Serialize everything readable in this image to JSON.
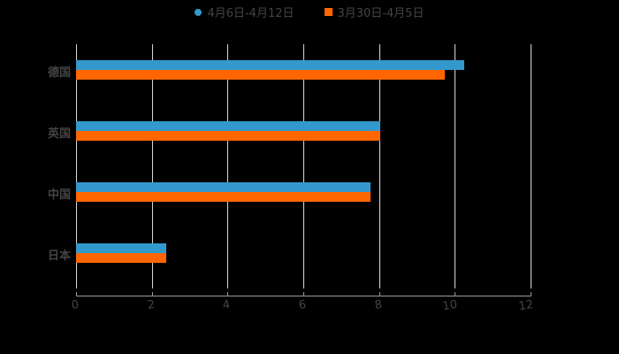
{
  "chart_data": {
    "type": "bar",
    "orientation": "horizontal",
    "title": "",
    "xlabel": "",
    "ylabel": "",
    "categories": [
      "德国",
      "英国",
      "中国",
      "日本"
    ],
    "series": [
      {
        "name": "4月6日-4月12日",
        "color": "#3399cc",
        "values": [
          10.25,
          8.03,
          7.78,
          2.38
        ]
      },
      {
        "name": "3月30日-4月5日",
        "color": "#ff6600",
        "values": [
          9.74,
          8.03,
          7.78,
          2.38
        ]
      }
    ],
    "xlim": [
      0,
      12
    ],
    "xticks": [
      "0",
      "2",
      "4",
      "6",
      "8",
      "10",
      "12"
    ],
    "grid": true,
    "legend_position": "top"
  },
  "legend": [
    {
      "label": "4月6日-4月12日",
      "color": "#3399cc",
      "marker": "circle"
    },
    {
      "label": "3月30日-4月5日",
      "color": "#ff6600",
      "marker": "square"
    }
  ]
}
